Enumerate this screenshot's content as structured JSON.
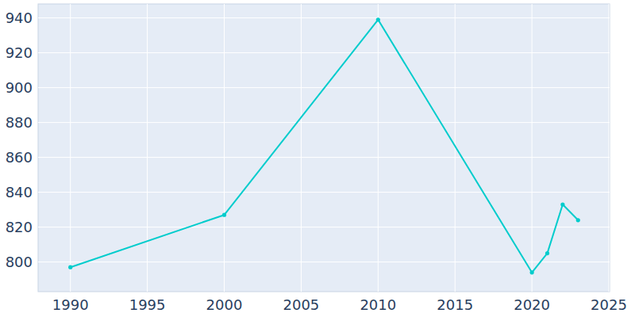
{
  "chart_data": {
    "type": "line",
    "x": [
      1990,
      2000,
      2010,
      2020,
      2021,
      2022,
      2023
    ],
    "values": [
      797,
      827,
      939,
      794,
      805,
      833,
      824
    ],
    "color": "#00cccc",
    "xlim": [
      1987.9,
      2025.05
    ],
    "xticks": [
      1990,
      1995,
      2000,
      2005,
      2010,
      2015,
      2020,
      2025
    ],
    "ylim": [
      783,
      948
    ],
    "yticks": [
      800,
      820,
      840,
      860,
      880,
      900,
      920,
      940
    ],
    "grid": true,
    "marker": "circle"
  }
}
